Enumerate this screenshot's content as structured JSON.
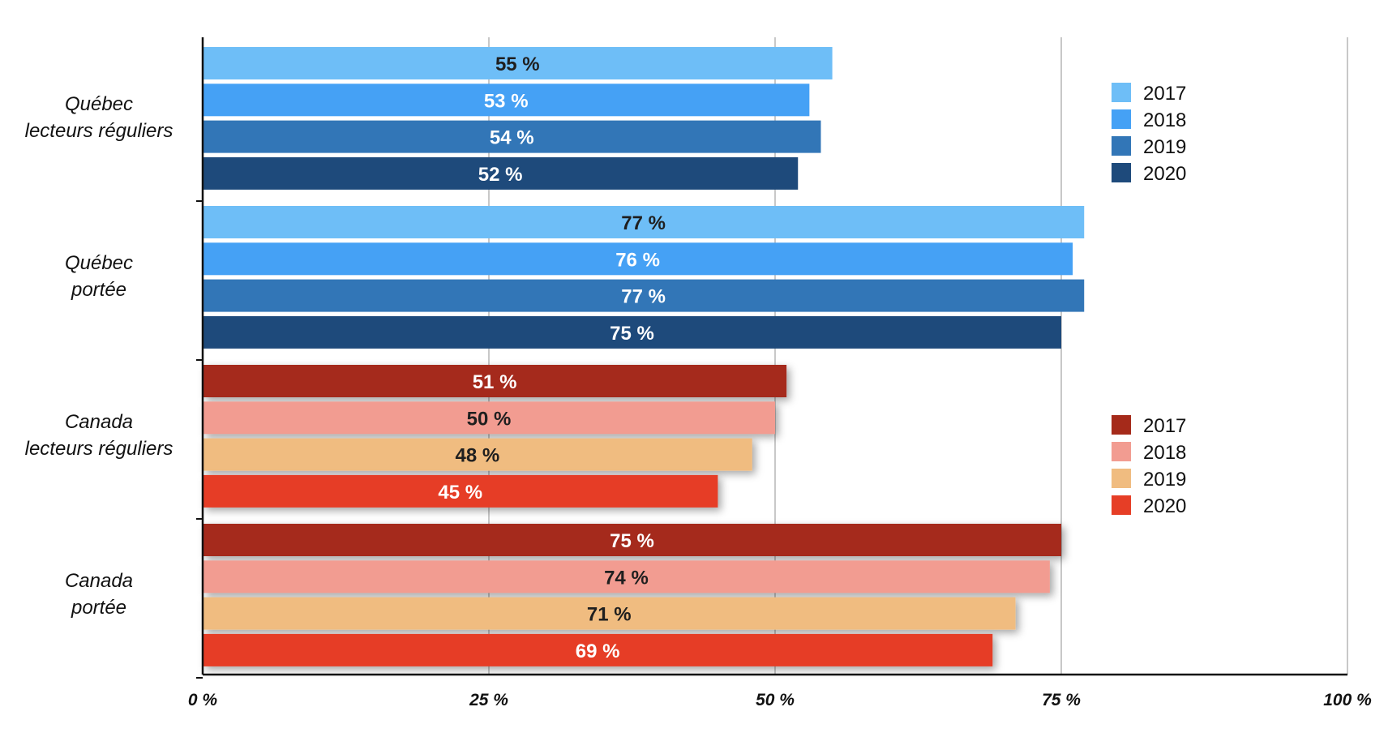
{
  "chart_data": {
    "type": "bar",
    "orientation": "horizontal",
    "xlim": [
      0,
      100
    ],
    "x_ticks": [
      "0 %",
      "25 %",
      "50 %",
      "75 %",
      "100 %"
    ],
    "grid": true,
    "value_suffix": " %",
    "groups": [
      {
        "label_lines": [
          "Québec",
          "lecteurs réguliers"
        ],
        "palette": "blue",
        "series": [
          {
            "name": "2017",
            "value": 55
          },
          {
            "name": "2018",
            "value": 53
          },
          {
            "name": "2019",
            "value": 54
          },
          {
            "name": "2020",
            "value": 52
          }
        ]
      },
      {
        "label_lines": [
          "Québec",
          "portée"
        ],
        "palette": "blue",
        "series": [
          {
            "name": "2017",
            "value": 77
          },
          {
            "name": "2018",
            "value": 76
          },
          {
            "name": "2019",
            "value": 77
          },
          {
            "name": "2020",
            "value": 75
          }
        ]
      },
      {
        "label_lines": [
          "Canada",
          "lecteurs réguliers"
        ],
        "palette": "red",
        "series": [
          {
            "name": "2017",
            "value": 51
          },
          {
            "name": "2018",
            "value": 50
          },
          {
            "name": "2019",
            "value": 48
          },
          {
            "name": "2020",
            "value": 45
          }
        ]
      },
      {
        "label_lines": [
          "Canada",
          "portée"
        ],
        "palette": "red",
        "series": [
          {
            "name": "2017",
            "value": 75
          },
          {
            "name": "2018",
            "value": 74
          },
          {
            "name": "2019",
            "value": 71
          },
          {
            "name": "2020",
            "value": 69
          }
        ]
      }
    ],
    "palettes": {
      "blue": [
        {
          "year": "2017",
          "color": "#6EBEF7",
          "label_color": "#1f1f1f"
        },
        {
          "year": "2018",
          "color": "#45A1F5",
          "label_color": "#ffffff"
        },
        {
          "year": "2019",
          "color": "#3276B7",
          "label_color": "#ffffff"
        },
        {
          "year": "2020",
          "color": "#1E4A7B",
          "label_color": "#ffffff"
        }
      ],
      "red": [
        {
          "year": "2017",
          "color": "#A52A1A",
          "label_color": "#ffffff"
        },
        {
          "year": "2018",
          "color": "#F29C91",
          "label_color": "#1f1f1f"
        },
        {
          "year": "2019",
          "color": "#F0BC80",
          "label_color": "#1f1f1f"
        },
        {
          "year": "2020",
          "color": "#E63E26",
          "label_color": "#ffffff"
        }
      ]
    },
    "legends": [
      {
        "palette": "blue",
        "position": "right-top"
      },
      {
        "palette": "red",
        "position": "right-middle"
      }
    ]
  }
}
